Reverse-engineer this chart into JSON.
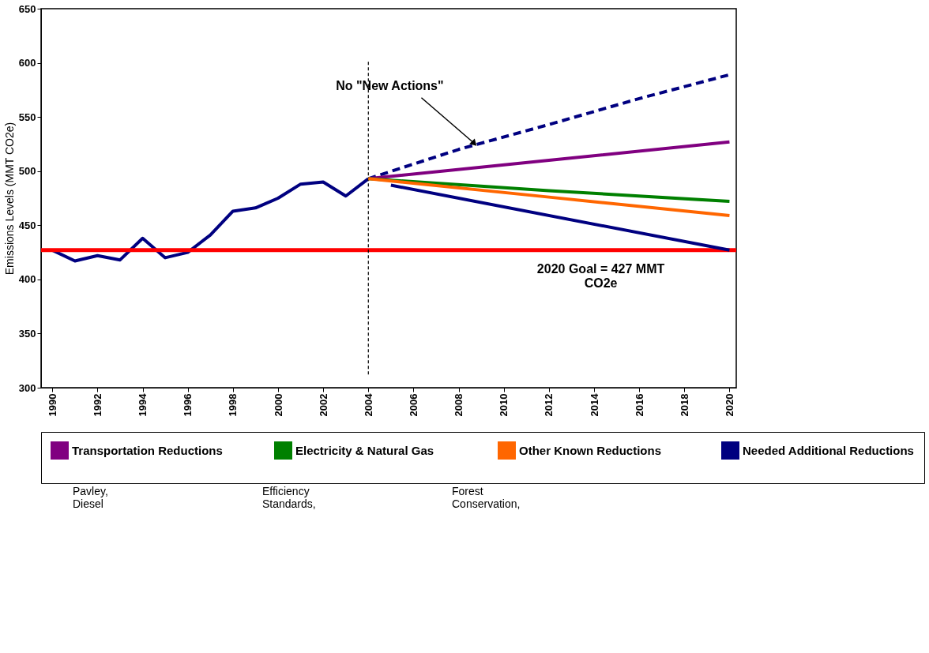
{
  "chart_data": {
    "type": "line",
    "ylabel": "Emissions Levels (MMT CO2e)",
    "xlim": [
      1989.5,
      2020.3
    ],
    "xticks": [
      1990,
      1992,
      1994,
      1996,
      1998,
      2000,
      2002,
      2004,
      2006,
      2008,
      2010,
      2012,
      2014,
      2016,
      2018,
      2020
    ],
    "ylim": [
      300,
      650
    ],
    "yticks": [
      300,
      350,
      400,
      450,
      500,
      550,
      600,
      650
    ],
    "grid": false,
    "legend": "bottom",
    "marker": "none",
    "series": [
      {
        "color": "#000080",
        "x": [
          1990,
          1991,
          1992,
          1993,
          1994,
          1995,
          1996,
          1997,
          1998,
          1999,
          2000,
          2001,
          2002,
          2003,
          2004
        ],
        "values": [
          427,
          417,
          422,
          418,
          438,
          420,
          425,
          441,
          463,
          466,
          475,
          488,
          490,
          477,
          493
        ]
      },
      {
        "color": "#000080",
        "line_style": "dashed",
        "x": [
          2004,
          2008,
          2012,
          2016,
          2020
        ],
        "values": [
          493,
          520,
          543,
          567,
          589
        ]
      },
      {
        "name": "Transportation Reductions",
        "color": "#800080",
        "x": [
          2004,
          2012,
          2020
        ],
        "values": [
          493,
          510,
          527
        ]
      },
      {
        "name": "Electricity & Natural Gas",
        "color": "#008000",
        "x": [
          2004,
          2012,
          2020
        ],
        "values": [
          493,
          482,
          472
        ]
      },
      {
        "name": "Other Known Reductions",
        "color": "#ff6600",
        "x": [
          2004,
          2012,
          2020
        ],
        "values": [
          493,
          476,
          459
        ]
      },
      {
        "name": "Needed Additional Reductions",
        "color": "#000080",
        "x": [
          2005,
          2020
        ],
        "values": [
          487,
          427
        ]
      }
    ],
    "ref_lines": [
      {
        "axis": "y",
        "value": 427,
        "label": "2020 Goal = 427 MMT\nCO2e",
        "color": "#ff0000",
        "line_style": "solid"
      },
      {
        "axis": "x",
        "value": 2004,
        "color": "#000000",
        "line_style": "dashed"
      }
    ],
    "annotations": [
      {
        "text": "No \"New Actions\"",
        "x": 2008.8,
        "y": 524
      },
      "Pavley,\nDiesel",
      "Efficiency\nStandards,",
      "Forest\nConservation,"
    ]
  }
}
